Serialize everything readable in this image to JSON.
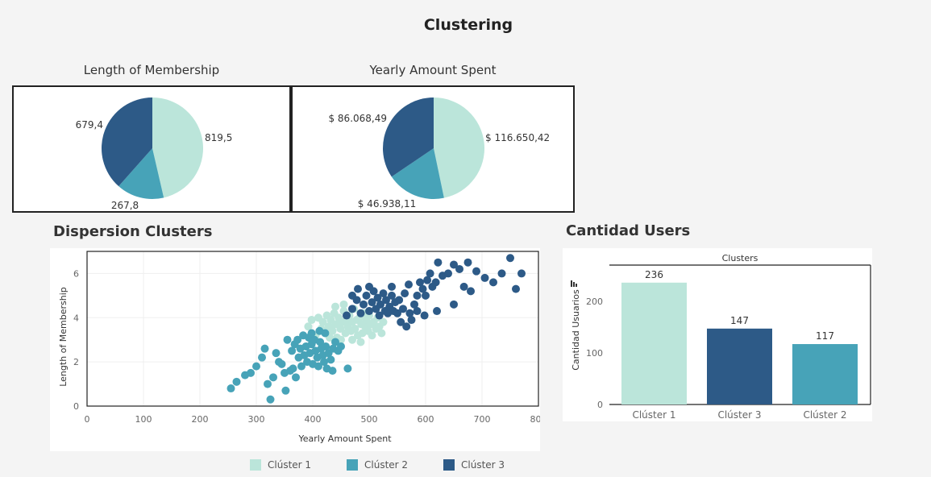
{
  "dashboard": {
    "title": "Clustering"
  },
  "colors": {
    "cluster1": "#bbe5da",
    "cluster2": "#47a3b8",
    "cluster3": "#2d5a87"
  },
  "chart_data": [
    {
      "id": "pie_membership",
      "type": "pie",
      "title": "Length of Membership",
      "slices": [
        {
          "category": "Clúster 1",
          "value": 819.5,
          "label": "819,5"
        },
        {
          "category": "Clúster 2",
          "value": 267.8,
          "label": "267,8"
        },
        {
          "category": "Clúster 3",
          "value": 679.4,
          "label": "679,4"
        }
      ]
    },
    {
      "id": "pie_spent",
      "type": "pie",
      "title": "Yearly Amount Spent",
      "slices": [
        {
          "category": "Clúster 1",
          "value": 116650.42,
          "label": "$ 116.650,42"
        },
        {
          "category": "Clúster 2",
          "value": 46938.11,
          "label": "$ 46.938,11"
        },
        {
          "category": "Clúster 3",
          "value": 86068.49,
          "label": "$ 86.068,49"
        }
      ]
    },
    {
      "id": "scatter",
      "type": "scatter",
      "title": "Dispersion Clusters",
      "xlabel": "Yearly Amount Spent",
      "ylabel": "Length of Membership",
      "xlim": [
        0,
        800
      ],
      "ylim": [
        0,
        7
      ],
      "xticks": [
        0,
        100,
        200,
        300,
        400,
        500,
        600,
        700,
        800
      ],
      "yticks": [
        0,
        2,
        4,
        6
      ],
      "series": [
        {
          "name": "Clúster 1",
          "points": [
            [
              392,
              3.6
            ],
            [
              398,
              3.9
            ],
            [
              405,
              3.2
            ],
            [
              410,
              4.0
            ],
            [
              415,
              3.5
            ],
            [
              418,
              3.8
            ],
            [
              422,
              3.3
            ],
            [
              425,
              4.1
            ],
            [
              428,
              3.6
            ],
            [
              432,
              3.9
            ],
            [
              435,
              3.4
            ],
            [
              438,
              4.2
            ],
            [
              440,
              3.7
            ],
            [
              443,
              3.1
            ],
            [
              446,
              4.0
            ],
            [
              449,
              3.5
            ],
            [
              452,
              3.8
            ],
            [
              455,
              4.3
            ],
            [
              458,
              3.3
            ],
            [
              460,
              3.9
            ],
            [
              462,
              3.6
            ],
            [
              465,
              4.1
            ],
            [
              468,
              3.4
            ],
            [
              470,
              3.8
            ],
            [
              473,
              4.4
            ],
            [
              475,
              3.5
            ],
            [
              478,
              3.9
            ],
            [
              480,
              3.2
            ],
            [
              483,
              4.0
            ],
            [
              486,
              3.7
            ],
            [
              488,
              3.3
            ],
            [
              490,
              4.2
            ],
            [
              493,
              3.6
            ],
            [
              495,
              3.9
            ],
            [
              498,
              3.4
            ],
            [
              500,
              4.1
            ],
            [
              503,
              3.7
            ],
            [
              505,
              3.2
            ],
            [
              508,
              3.8
            ],
            [
              512,
              3.5
            ],
            [
              515,
              4.0
            ],
            [
              518,
              3.6
            ],
            [
              522,
              3.3
            ],
            [
              525,
              3.8
            ],
            [
              455,
              4.6
            ],
            [
              440,
              4.5
            ],
            [
              470,
              3.0
            ],
            [
              485,
              2.9
            ],
            [
              450,
              3.0
            ],
            [
              430,
              3.1
            ]
          ]
        },
        {
          "name": "Clúster 2",
          "points": [
            [
              255,
              0.8
            ],
            [
              265,
              1.1
            ],
            [
              280,
              1.4
            ],
            [
              290,
              1.5
            ],
            [
              300,
              1.8
            ],
            [
              310,
              2.2
            ],
            [
              315,
              2.6
            ],
            [
              320,
              1.0
            ],
            [
              325,
              0.3
            ],
            [
              330,
              1.3
            ],
            [
              335,
              2.4
            ],
            [
              340,
              2.0
            ],
            [
              345,
              1.9
            ],
            [
              350,
              1.5
            ],
            [
              352,
              0.7
            ],
            [
              355,
              3.0
            ],
            [
              360,
              1.6
            ],
            [
              363,
              2.5
            ],
            [
              365,
              1.7
            ],
            [
              368,
              2.8
            ],
            [
              370,
              1.3
            ],
            [
              373,
              3.0
            ],
            [
              375,
              2.2
            ],
            [
              378,
              2.6
            ],
            [
              380,
              1.8
            ],
            [
              383,
              3.2
            ],
            [
              385,
              2.3
            ],
            [
              388,
              2.7
            ],
            [
              390,
              2.0
            ],
            [
              393,
              3.1
            ],
            [
              395,
              2.4
            ],
            [
              398,
              2.8
            ],
            [
              400,
              1.9
            ],
            [
              403,
              3.0
            ],
            [
              405,
              2.5
            ],
            [
              408,
              2.2
            ],
            [
              410,
              1.8
            ],
            [
              413,
              2.9
            ],
            [
              415,
              2.6
            ],
            [
              418,
              2.3
            ],
            [
              420,
              2.0
            ],
            [
              423,
              2.7
            ],
            [
              425,
              1.7
            ],
            [
              428,
              2.4
            ],
            [
              432,
              2.1
            ],
            [
              436,
              2.6
            ],
            [
              440,
              2.9
            ],
            [
              445,
              2.5
            ],
            [
              450,
              2.7
            ],
            [
              435,
              1.6
            ],
            [
              422,
              3.3
            ],
            [
              412,
              3.4
            ],
            [
              398,
              3.3
            ],
            [
              462,
              1.7
            ]
          ]
        },
        {
          "name": "Clúster 3",
          "points": [
            [
              460,
              4.1
            ],
            [
              470,
              4.4
            ],
            [
              478,
              4.8
            ],
            [
              485,
              4.2
            ],
            [
              490,
              4.6
            ],
            [
              495,
              5.0
            ],
            [
              500,
              4.3
            ],
            [
              505,
              4.7
            ],
            [
              508,
              5.2
            ],
            [
              512,
              4.4
            ],
            [
              515,
              4.9
            ],
            [
              518,
              4.1
            ],
            [
              520,
              4.6
            ],
            [
              525,
              5.1
            ],
            [
              528,
              4.3
            ],
            [
              530,
              4.8
            ],
            [
              533,
              4.2
            ],
            [
              536,
              4.5
            ],
            [
              540,
              5.0
            ],
            [
              543,
              4.3
            ],
            [
              546,
              4.7
            ],
            [
              550,
              4.2
            ],
            [
              553,
              4.8
            ],
            [
              556,
              3.8
            ],
            [
              560,
              4.4
            ],
            [
              563,
              5.1
            ],
            [
              566,
              3.6
            ],
            [
              570,
              5.5
            ],
            [
              572,
              4.2
            ],
            [
              575,
              3.9
            ],
            [
              580,
              4.6
            ],
            [
              585,
              5.0
            ],
            [
              590,
              5.6
            ],
            [
              595,
              5.3
            ],
            [
              600,
              5.0
            ],
            [
              603,
              5.7
            ],
            [
              608,
              6.0
            ],
            [
              612,
              5.4
            ],
            [
              618,
              5.6
            ],
            [
              622,
              6.5
            ],
            [
              630,
              5.9
            ],
            [
              640,
              6.0
            ],
            [
              650,
              6.4
            ],
            [
              660,
              6.2
            ],
            [
              668,
              5.4
            ],
            [
              675,
              6.5
            ],
            [
              690,
              6.1
            ],
            [
              705,
              5.8
            ],
            [
              720,
              5.6
            ],
            [
              735,
              6.0
            ],
            [
              750,
              6.7
            ],
            [
              770,
              6.0
            ],
            [
              760,
              5.3
            ],
            [
              680,
              5.2
            ],
            [
              650,
              4.6
            ],
            [
              620,
              4.3
            ],
            [
              598,
              4.1
            ],
            [
              585,
              4.3
            ],
            [
              470,
              5.0
            ],
            [
              480,
              5.3
            ],
            [
              540,
              5.4
            ],
            [
              500,
              5.4
            ]
          ]
        }
      ]
    },
    {
      "id": "bar",
      "type": "bar",
      "title": "Cantidad Users",
      "header": "Clusters",
      "ylabel": "Cantidad Usuarios",
      "ylim": [
        0,
        270
      ],
      "yticks": [
        0,
        100,
        200
      ],
      "categories": [
        "Clúster 1",
        "Clúster 3",
        "Clúster 2"
      ],
      "values": [
        236,
        147,
        117
      ],
      "bar_colors": [
        "#bbe5da",
        "#2d5a87",
        "#47a3b8"
      ]
    }
  ],
  "legend": [
    {
      "label": "Clúster 1",
      "color": "#bbe5da"
    },
    {
      "label": "Clúster 2",
      "color": "#47a3b8"
    },
    {
      "label": "Clúster 3",
      "color": "#2d5a87"
    }
  ]
}
